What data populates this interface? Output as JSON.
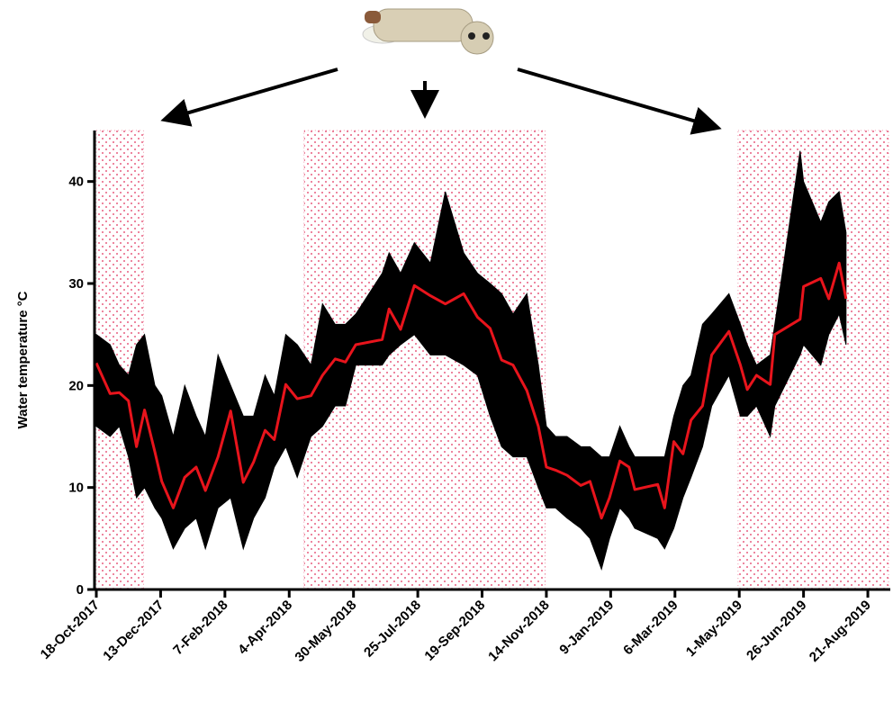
{
  "chart_data": {
    "type": "line",
    "y_label": "Water temperature °C",
    "x": [
      "2017-10-18",
      "2017-10-30",
      "2017-11-07",
      "2017-11-15",
      "2017-11-22",
      "2017-11-29",
      "2017-12-08",
      "2017-12-14",
      "2017-12-24",
      "2018-01-03",
      "2018-01-13",
      "2018-01-21",
      "2018-02-01",
      "2018-02-12",
      "2018-02-23",
      "2018-03-04",
      "2018-03-14",
      "2018-03-22",
      "2018-04-01",
      "2018-04-11",
      "2018-04-23",
      "2018-05-03",
      "2018-05-14",
      "2018-05-23",
      "2018-06-01",
      "2018-06-24",
      "2018-06-30",
      "2018-07-10",
      "2018-07-22",
      "2018-08-05",
      "2018-08-18",
      "2018-09-03",
      "2018-09-15",
      "2018-09-26",
      "2018-10-06",
      "2018-10-16",
      "2018-10-28",
      "2018-11-07",
      "2018-11-14",
      "2018-11-22",
      "2018-12-02",
      "2018-12-14",
      "2018-12-22",
      "2019-01-01",
      "2019-01-08",
      "2019-01-17",
      "2019-01-25",
      "2019-01-30",
      "2019-02-19",
      "2019-02-25",
      "2019-03-05",
      "2019-03-13",
      "2019-03-20",
      "2019-03-30",
      "2019-04-07",
      "2019-04-22",
      "2019-05-02",
      "2019-05-08",
      "2019-05-16",
      "2019-05-28",
      "2019-06-01",
      "2019-06-23",
      "2019-06-26",
      "2019-07-11",
      "2019-07-18",
      "2019-07-27",
      "2019-08-02"
    ],
    "series": [
      {
        "color": "#000000",
        "low": [
          16,
          15,
          16,
          13,
          9,
          10,
          8,
          7,
          4,
          6,
          7,
          4,
          8,
          9,
          4,
          7,
          9,
          12,
          14,
          11,
          15,
          16,
          18,
          18,
          22,
          22,
          23,
          24,
          25,
          23,
          23,
          22,
          21,
          17,
          14,
          13,
          13,
          10,
          8,
          8,
          7,
          6,
          5,
          2,
          5,
          8,
          7,
          6,
          5,
          4,
          6,
          9,
          11,
          14,
          18,
          21,
          17,
          17,
          18,
          15,
          18,
          23,
          24,
          22,
          25,
          27,
          24
        ],
        "high": [
          25,
          24,
          22,
          21,
          24,
          25,
          20,
          19,
          15,
          20,
          17,
          15,
          23,
          20,
          17,
          17,
          21,
          19,
          25,
          24,
          22,
          28,
          26,
          26,
          27,
          31,
          33,
          31,
          34,
          32,
          39,
          33,
          31,
          30,
          29,
          27,
          29,
          22,
          16,
          15,
          15,
          14,
          14,
          13,
          13,
          16,
          14,
          13,
          13,
          13,
          17,
          20,
          21,
          26,
          27,
          29,
          26,
          24,
          22,
          23,
          26,
          43,
          40,
          36,
          38,
          39,
          35
        ]
      },
      {
        "color": "#e8141c",
        "values": [
          22.2,
          19.2,
          19.3,
          18.5,
          14,
          17.6,
          13.5,
          10.6,
          8,
          11,
          12,
          9.7,
          13,
          17.5,
          10.5,
          12.5,
          15.6,
          14.7,
          20.1,
          18.7,
          19,
          21,
          22.6,
          22.3,
          24,
          24.5,
          27.5,
          25.5,
          29.8,
          28.8,
          28,
          29,
          26.7,
          25.6,
          22.5,
          22,
          19.5,
          16,
          12,
          11.7,
          11.2,
          10.2,
          10.6,
          7,
          9,
          12.6,
          12,
          9.8,
          10.3,
          8,
          14.5,
          13.3,
          16.6,
          18,
          23,
          25.3,
          22,
          19.6,
          21,
          20.1,
          25,
          26.5,
          29.7,
          30.5,
          28.5,
          32,
          28.5
        ]
      }
    ],
    "shaded_periods": [
      {
        "start": "2017-10-18",
        "end": "2017-11-28"
      },
      {
        "start": "2018-04-17",
        "end": "2018-11-13"
      },
      {
        "start": "2019-04-30",
        "end": "2019-09-08"
      }
    ],
    "shade_color": "#e0305a",
    "xlim": [
      "2017-10-18",
      "2019-09-08"
    ],
    "xticks": [
      {
        "value": "2017-10-18",
        "label": "18-Oct-2017"
      },
      {
        "value": "2017-12-13",
        "label": "13-Dec-2017"
      },
      {
        "value": "2018-02-07",
        "label": "7-Feb-2018"
      },
      {
        "value": "2018-04-04",
        "label": "4-Apr-2018"
      },
      {
        "value": "2018-05-30",
        "label": "30-May-2018"
      },
      {
        "value": "2018-07-25",
        "label": "25-Jul-2018"
      },
      {
        "value": "2018-09-19",
        "label": "19-Sep-2018"
      },
      {
        "value": "2018-11-14",
        "label": "14-Nov-2018"
      },
      {
        "value": "2019-01-09",
        "label": "9-Jan-2019"
      },
      {
        "value": "2019-03-06",
        "label": "6-Mar-2019"
      },
      {
        "value": "2019-05-01",
        "label": "1-May-2019"
      },
      {
        "value": "2019-06-26",
        "label": "26-Jun-2019"
      },
      {
        "value": "2019-08-21",
        "label": "21-Aug-2019"
      }
    ],
    "ylim": [
      0,
      45
    ],
    "yticks": [
      0,
      10,
      20,
      30,
      40
    ]
  }
}
